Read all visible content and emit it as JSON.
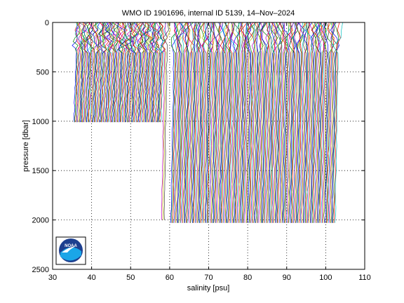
{
  "chart_data": {
    "type": "line",
    "title": "WMO ID 1901696, internal ID 5139, 14–Nov–2024",
    "xlabel": "salinity [psu]",
    "ylabel": "pressure [dbar]",
    "xlim": [
      30,
      110
    ],
    "ylim": [
      0,
      2500
    ],
    "y_reversed": true,
    "xticks": [
      30,
      40,
      50,
      60,
      70,
      80,
      90,
      100,
      110
    ],
    "yticks": [
      0,
      500,
      1000,
      1500,
      2000,
      2500
    ],
    "grid": true,
    "description": "Waterfall of salinity profiles, each profile offset horizontally. Early profiles reach ~1000 dbar, later profiles reach ~2000 dbar.",
    "profile_groups": [
      {
        "x_start": 35.2,
        "x_end": 57.5,
        "count": 95,
        "max_pressure": 1010
      },
      {
        "x_start": 57.8,
        "x_end": 58.4,
        "count": 3,
        "max_pressure": 2000
      },
      {
        "x_start": 60.2,
        "x_end": 102.3,
        "count": 165,
        "max_pressure": 2030
      }
    ],
    "colors": [
      "#0000ff",
      "#008000",
      "#ff0000",
      "#00bfbf",
      "#bf00bf",
      "#bfbf00",
      "#404040"
    ]
  },
  "logo": {
    "text": "NOAA",
    "ring_color": "#1d3f8f",
    "bird_color": "#ffffff",
    "wave_color": "#1aa6e8"
  }
}
